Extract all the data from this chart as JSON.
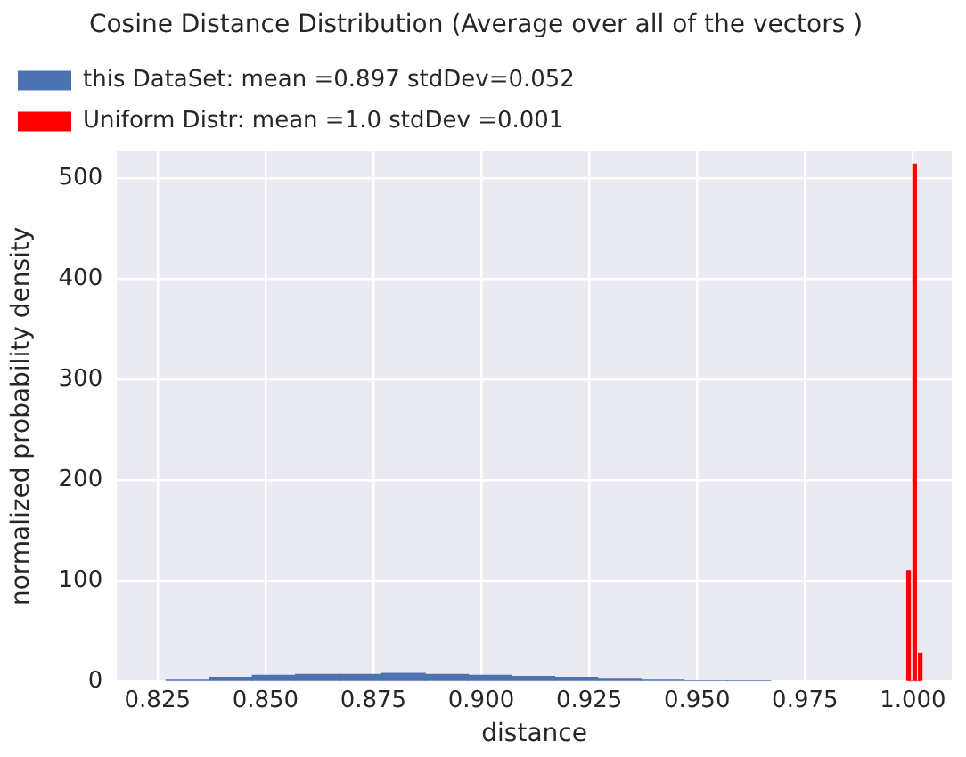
{
  "chart_data": {
    "type": "histogram",
    "title": "Cosine Distance Distribution (Average over all of the vectors )",
    "xlabel": "distance",
    "ylabel": "normalized probability density",
    "bins": [
      0.827,
      0.837,
      0.847,
      0.857,
      0.867,
      0.877,
      0.887,
      0.897,
      0.907,
      0.917,
      0.927,
      0.937,
      0.947,
      0.957,
      0.967,
      0.9986,
      0.9994,
      1.0,
      1.0008,
      1.0013,
      1.0021
    ],
    "series": [
      {
        "name": "this DataSet: mean =0.897 stdDev=0.052",
        "color": "#4c72b0",
        "values": [
          2,
          4,
          6,
          7,
          7,
          8,
          7,
          6,
          5,
          4,
          3,
          2,
          1,
          1,
          null,
          null,
          null,
          null,
          null,
          null
        ]
      },
      {
        "name": "Uniform Distr: mean =1.0 stdDev =0.001",
        "color": "#ff0000",
        "values": [
          null,
          null,
          null,
          null,
          null,
          null,
          null,
          null,
          null,
          null,
          null,
          null,
          null,
          null,
          null,
          110,
          0,
          514,
          0,
          28
        ]
      }
    ],
    "xlim": [
      0.8156,
      1.009
    ],
    "ylim": [
      0,
      527
    ],
    "xticks": [
      {
        "value": 0.825,
        "label": "0.825"
      },
      {
        "value": 0.85,
        "label": "0.850"
      },
      {
        "value": 0.875,
        "label": "0.875"
      },
      {
        "value": 0.9,
        "label": "0.900"
      },
      {
        "value": 0.925,
        "label": "0.925"
      },
      {
        "value": 0.95,
        "label": "0.950"
      },
      {
        "value": 0.975,
        "label": "0.975"
      },
      {
        "value": 1.0,
        "label": "1.000"
      }
    ],
    "yticks": [
      0,
      100,
      200,
      300,
      400,
      500
    ],
    "grid": true,
    "legend": "top left"
  }
}
